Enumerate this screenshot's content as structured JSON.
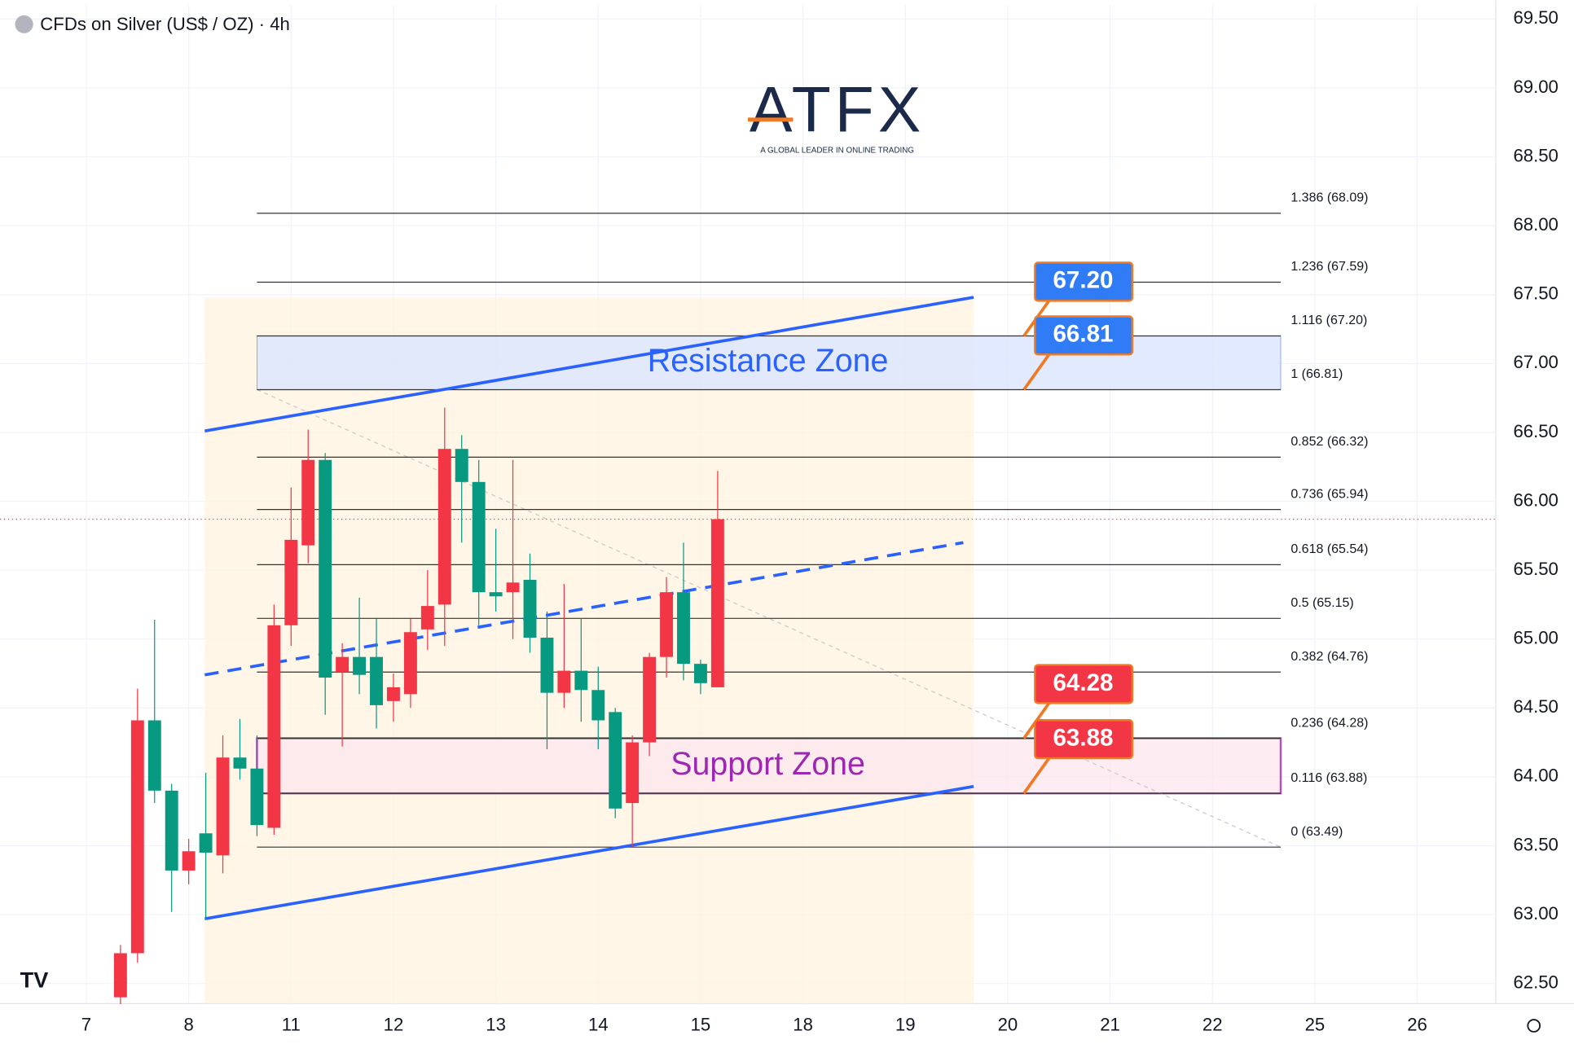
{
  "chart_data": {
    "type": "candlestick",
    "title": "CFDs on Silver (US$ / OZ) · 4h",
    "logo": "ATFX",
    "logo_tagline": "A GLOBAL LEADER IN ONLINE TRADING",
    "x": [
      2,
      3,
      4,
      5,
      6,
      7,
      8,
      9,
      10,
      11,
      12,
      13,
      14,
      15,
      16,
      17,
      18,
      19,
      20,
      21,
      22,
      23,
      24,
      25,
      26,
      27,
      28,
      29,
      30,
      31,
      32,
      33,
      34,
      35,
      36,
      37
    ],
    "open": [
      62.4,
      62.72,
      64.41,
      63.9,
      63.32,
      63.59,
      63.43,
      64.14,
      64.06,
      63.63,
      65.1,
      65.68,
      66.3,
      64.76,
      64.87,
      64.87,
      64.55,
      64.6,
      65.07,
      65.25,
      66.38,
      66.14,
      65.34,
      65.34,
      65.43,
      65.01,
      64.61,
      64.77,
      64.63,
      64.47,
      63.81,
      64.25,
      64.87,
      65.34,
      64.82,
      64.65
    ],
    "high": [
      62.78,
      64.64,
      65.14,
      63.95,
      63.55,
      64.03,
      64.3,
      64.42,
      64.3,
      65.25,
      66.1,
      66.52,
      66.35,
      64.97,
      65.3,
      65.15,
      64.75,
      65.15,
      65.5,
      66.68,
      66.48,
      66.3,
      65.8,
      66.3,
      65.62,
      65.2,
      65.4,
      65.15,
      64.8,
      64.5,
      64.3,
      64.9,
      65.45,
      65.7,
      64.85,
      66.22
    ],
    "low": [
      62.35,
      62.65,
      63.81,
      63.02,
      63.22,
      62.97,
      63.3,
      63.98,
      63.57,
      63.58,
      64.95,
      65.55,
      64.45,
      64.22,
      64.6,
      64.35,
      64.4,
      64.5,
      64.92,
      64.95,
      65.7,
      65.1,
      65.2,
      65.0,
      64.9,
      64.2,
      64.5,
      64.4,
      64.2,
      63.7,
      63.49,
      64.15,
      64.72,
      64.7,
      64.6,
      64.65
    ],
    "close": [
      62.72,
      64.41,
      63.9,
      63.32,
      63.46,
      63.45,
      64.14,
      64.06,
      63.65,
      65.1,
      65.72,
      66.3,
      64.72,
      64.87,
      64.74,
      64.52,
      64.65,
      65.05,
      65.24,
      66.38,
      66.14,
      65.34,
      65.31,
      65.41,
      65.01,
      64.61,
      64.77,
      64.63,
      64.41,
      63.77,
      64.25,
      64.87,
      65.34,
      64.82,
      64.68,
      65.87
    ],
    "up_color": "#f23645",
    "down_color": "#089981",
    "xlim": [
      -5.06,
      82.6
    ],
    "xticks": [
      {
        "value": 0,
        "label": "7"
      },
      {
        "value": 6,
        "label": "8"
      },
      {
        "value": 12,
        "label": "11"
      },
      {
        "value": 18,
        "label": "12"
      },
      {
        "value": 24,
        "label": "13"
      },
      {
        "value": 30,
        "label": "14"
      },
      {
        "value": 36,
        "label": "15"
      },
      {
        "value": 42,
        "label": "18"
      },
      {
        "value": 48,
        "label": "19"
      },
      {
        "value": 54,
        "label": "20"
      },
      {
        "value": 60,
        "label": "21"
      },
      {
        "value": 66,
        "label": "22"
      },
      {
        "value": 72,
        "label": "25"
      },
      {
        "value": 78,
        "label": "26"
      }
    ],
    "ylim": [
      62.354,
      69.6
    ],
    "yticks": [
      {
        "value": 62.5,
        "label": "62.50"
      },
      {
        "value": 63,
        "label": "63.00"
      },
      {
        "value": 63.5,
        "label": "63.50"
      },
      {
        "value": 64,
        "label": "64.00"
      },
      {
        "value": 64.5,
        "label": "64.50"
      },
      {
        "value": 65,
        "label": "65.00"
      },
      {
        "value": 65.5,
        "label": "65.50"
      },
      {
        "value": 66,
        "label": "66.00"
      },
      {
        "value": 66.5,
        "label": "66.50"
      },
      {
        "value": 67,
        "label": "67.00"
      },
      {
        "value": 67.5,
        "label": "67.50"
      },
      {
        "value": 68,
        "label": "68.00"
      },
      {
        "value": 68.5,
        "label": "68.50"
      },
      {
        "value": 69,
        "label": "69.00"
      },
      {
        "value": 69.5,
        "label": "69.50"
      }
    ],
    "fib_x": [
      10,
      70
    ],
    "fib_levels": [
      {
        "value": 68.09,
        "label": "1.386 (68.09)"
      },
      {
        "value": 67.59,
        "label": "1.236 (67.59)"
      },
      {
        "value": 67.2,
        "label": "1.116 (67.20)"
      },
      {
        "value": 66.81,
        "label": "1 (66.81)"
      },
      {
        "value": 66.32,
        "label": "0.852 (66.32)"
      },
      {
        "value": 65.94,
        "label": "0.736 (65.94)"
      },
      {
        "value": 65.54,
        "label": "0.618 (65.54)"
      },
      {
        "value": 65.15,
        "label": "0.5 (65.15)"
      },
      {
        "value": 64.76,
        "label": "0.382 (64.76)"
      },
      {
        "value": 64.28,
        "label": "0.236 (64.28)"
      },
      {
        "value": 63.88,
        "label": "0.116 (63.88)"
      },
      {
        "value": 63.49,
        "label": "0 (63.49)"
      }
    ],
    "zones": [
      {
        "label": "Resistance Zone",
        "range": [
          66.81,
          67.2
        ],
        "color": "#2962ff",
        "fill": "#dbe6ff"
      },
      {
        "label": "Support Zone",
        "range": [
          63.88,
          64.28
        ],
        "color": "#9c27b0",
        "fill": "#fde8ee"
      }
    ],
    "tags": [
      {
        "value": 67.2,
        "label": "67.20",
        "color": "#2f7cf6"
      },
      {
        "value": 66.81,
        "label": "66.81",
        "color": "#2f7cf6"
      },
      {
        "value": 64.28,
        "label": "64.28",
        "color": "#f23645"
      },
      {
        "value": 63.88,
        "label": "63.88",
        "color": "#f23645"
      }
    ],
    "trendlines": [
      {
        "x": [
          6.94,
          52
        ],
        "y": [
          66.51,
          67.48
        ],
        "dashed": false
      },
      {
        "x": [
          6.94,
          52
        ],
        "y": [
          62.97,
          63.93
        ],
        "dashed": false
      },
      {
        "x": [
          6.94,
          51.4
        ],
        "y": [
          64.74,
          65.7
        ],
        "dashed": true
      }
    ]
  }
}
